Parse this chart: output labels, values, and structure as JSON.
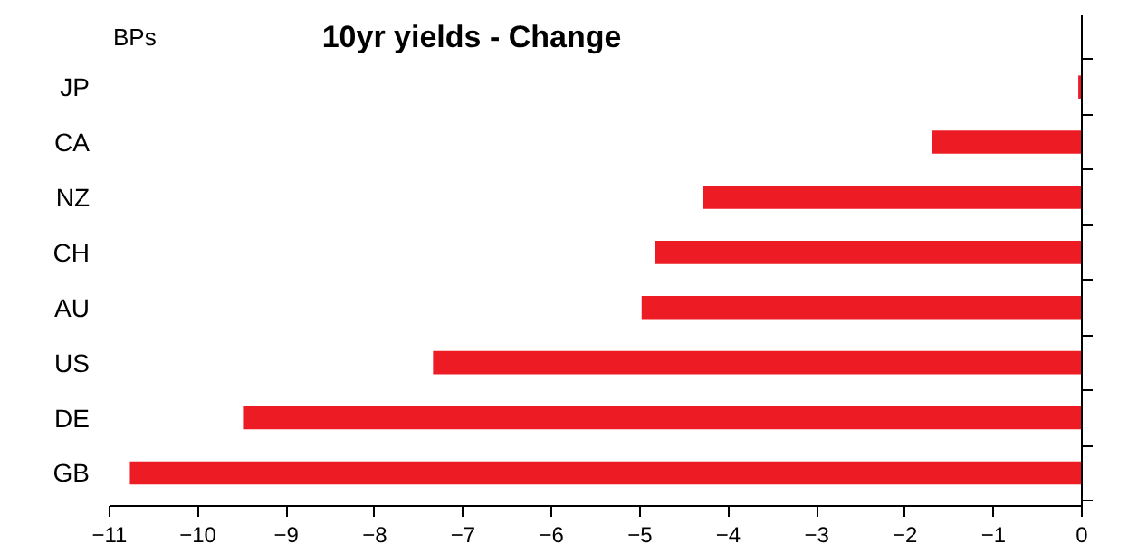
{
  "chart_data": {
    "type": "bar",
    "orientation": "horizontal",
    "title": "10yr yields - Change",
    "ylabel": "BPs",
    "categories": [
      "JP",
      "CA",
      "NZ",
      "CH",
      "AU",
      "US",
      "DE",
      "GB"
    ],
    "values": [
      -0.04,
      -1.7,
      -4.29,
      -4.83,
      -4.98,
      -7.34,
      -9.49,
      -10.77
    ],
    "color": "#ed1c24",
    "xlim": [
      -11,
      0
    ],
    "xticks": [
      -11,
      -10,
      -9,
      -8,
      -7,
      -6,
      -5,
      -4,
      -3,
      -2,
      -1,
      0
    ],
    "grid": false
  }
}
